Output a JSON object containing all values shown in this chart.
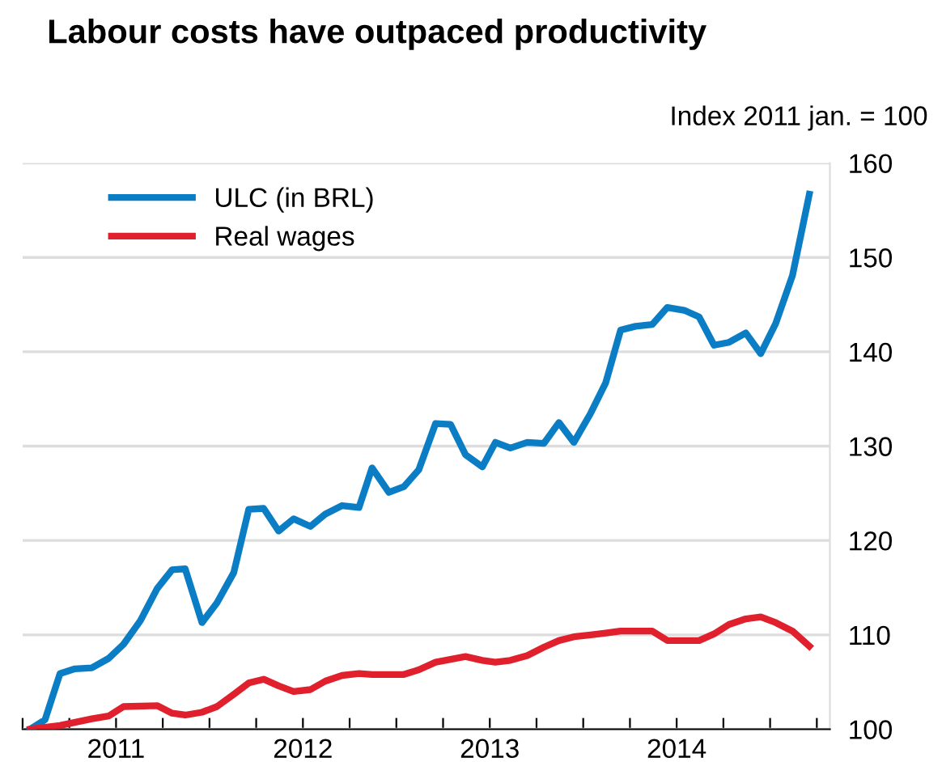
{
  "chart_data": {
    "type": "line",
    "title": "Labour costs have outpaced productivity",
    "ylabel": "Index 2011 jan. = 100",
    "series": [
      {
        "name": "ULC (in BRL)",
        "color": "#0a7dc4",
        "x": [
          2011.04,
          2011.12,
          2011.2,
          2011.28,
          2011.37,
          2011.46,
          2011.54,
          2011.63,
          2011.72,
          2011.8,
          2011.87,
          2011.96,
          2012.04,
          2012.13,
          2012.21,
          2012.29,
          2012.37,
          2012.45,
          2012.54,
          2012.62,
          2012.71,
          2012.8,
          2012.87,
          2012.96,
          2013.04,
          2013.12,
          2013.21,
          2013.29,
          2013.37,
          2013.46,
          2013.53,
          2013.61,
          2013.7,
          2013.79,
          2013.87,
          2013.95,
          2014.04,
          2014.12,
          2014.2,
          2014.28,
          2014.37,
          2014.45,
          2014.54,
          2014.62,
          2014.7,
          2014.78,
          2014.87,
          2014.95,
          2015.03,
          2015.12,
          2015.21
        ],
        "values": [
          100,
          101,
          105.9,
          106.4,
          106.5,
          107.5,
          109,
          111.5,
          114.9,
          116.9,
          117,
          111.3,
          113.4,
          116.6,
          123.3,
          123.4,
          121,
          122.3,
          121.5,
          122.8,
          123.7,
          123.5,
          127.7,
          125.1,
          125.7,
          127.5,
          132.4,
          132.3,
          129.1,
          127.8,
          130.4,
          129.8,
          130.4,
          130.3,
          132.5,
          130.4,
          133.5,
          136.7,
          142.3,
          142.7,
          142.9,
          144.7,
          144.4,
          143.7,
          140.7,
          141,
          142,
          139.8,
          143,
          148.1,
          156.7
        ]
      },
      {
        "name": "Real wages",
        "color": "#e0202c",
        "x": [
          2011.04,
          2011.2,
          2011.37,
          2011.46,
          2011.54,
          2011.72,
          2011.8,
          2011.87,
          2011.96,
          2012.04,
          2012.13,
          2012.21,
          2012.29,
          2012.37,
          2012.45,
          2012.54,
          2012.62,
          2012.71,
          2012.8,
          2012.87,
          2013.04,
          2013.12,
          2013.21,
          2013.29,
          2013.37,
          2013.46,
          2013.53,
          2013.61,
          2013.7,
          2013.79,
          2013.87,
          2013.95,
          2014.04,
          2014.12,
          2014.2,
          2014.37,
          2014.45,
          2014.54,
          2014.62,
          2014.7,
          2014.78,
          2014.87,
          2014.95,
          2015.03,
          2015.12,
          2015.21
        ],
        "values": [
          100,
          100.4,
          101.1,
          101.4,
          102.4,
          102.5,
          101.7,
          101.5,
          101.8,
          102.4,
          103.7,
          104.9,
          105.3,
          104.6,
          104,
          104.2,
          105.1,
          105.7,
          105.9,
          105.8,
          105.8,
          106.3,
          107.1,
          107.4,
          107.7,
          107.3,
          107.1,
          107.3,
          107.8,
          108.7,
          109.4,
          109.8,
          110,
          110.2,
          110.4,
          110.4,
          109.4,
          109.4,
          109.4,
          110.1,
          111.1,
          111.7,
          111.9,
          111.3,
          110.4,
          108.8
        ]
      }
    ],
    "xlim": [
      2011,
      2015.32
    ],
    "xticks": [
      {
        "value": 2011,
        "label": null
      },
      {
        "value": 2011.25,
        "label": null
      },
      {
        "value": 2011.5,
        "label": "2011"
      },
      {
        "value": 2011.75,
        "label": null
      },
      {
        "value": 2012,
        "label": null
      },
      {
        "value": 2012.25,
        "label": null
      },
      {
        "value": 2012.5,
        "label": "2012"
      },
      {
        "value": 2012.75,
        "label": null
      },
      {
        "value": 2013,
        "label": null
      },
      {
        "value": 2013.25,
        "label": null
      },
      {
        "value": 2013.5,
        "label": "2013"
      },
      {
        "value": 2013.75,
        "label": null
      },
      {
        "value": 2014,
        "label": null
      },
      {
        "value": 2014.25,
        "label": null
      },
      {
        "value": 2014.5,
        "label": "2014"
      },
      {
        "value": 2014.75,
        "label": null
      },
      {
        "value": 2015,
        "label": null
      },
      {
        "value": 2015.25,
        "label": null
      }
    ],
    "ylim": [
      100,
      160
    ],
    "yticks": [
      100,
      110,
      120,
      130,
      140,
      150,
      160
    ],
    "grid": "y",
    "legend": "top left",
    "line_style": "solid",
    "marker": "none"
  }
}
